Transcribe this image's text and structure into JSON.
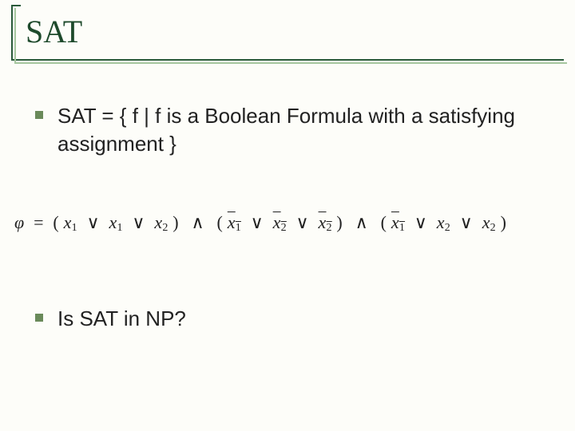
{
  "title": "SAT",
  "bullets": {
    "b1": "SAT = { f | f is a Boolean Formula with a satisfying assignment }",
    "b2": "Is SAT in NP?"
  },
  "formula": {
    "phi": "φ",
    "eq": "=",
    "lparen": "(",
    "rparen": ")",
    "or": "∨",
    "and": "∧",
    "x": "x",
    "s1": "1",
    "s2": "2",
    "colors": {
      "text": "#222222",
      "title": "#1e4a2c",
      "rule_dark": "#2a5a3a",
      "rule_light": "#a7c7a0",
      "bullet": "#6a8a5a",
      "background": "#fdfdf9"
    },
    "fonts": {
      "title_family": "Times New Roman",
      "title_size_pt": 30,
      "body_family": "Arial",
      "body_size_pt": 20,
      "formula_family": "Times New Roman",
      "formula_size_pt": 17
    },
    "clauses": [
      {
        "literals": [
          {
            "var": "x",
            "sub": "1",
            "neg": false
          },
          {
            "var": "x",
            "sub": "1",
            "neg": false
          },
          {
            "var": "x",
            "sub": "2",
            "neg": false
          }
        ]
      },
      {
        "literals": [
          {
            "var": "x",
            "sub": "1",
            "neg": true
          },
          {
            "var": "x",
            "sub": "2",
            "neg": true
          },
          {
            "var": "x",
            "sub": "2",
            "neg": true
          }
        ]
      },
      {
        "literals": [
          {
            "var": "x",
            "sub": "1",
            "neg": true
          },
          {
            "var": "x",
            "sub": "2",
            "neg": false
          },
          {
            "var": "x",
            "sub": "2",
            "neg": false
          }
        ]
      }
    ]
  }
}
